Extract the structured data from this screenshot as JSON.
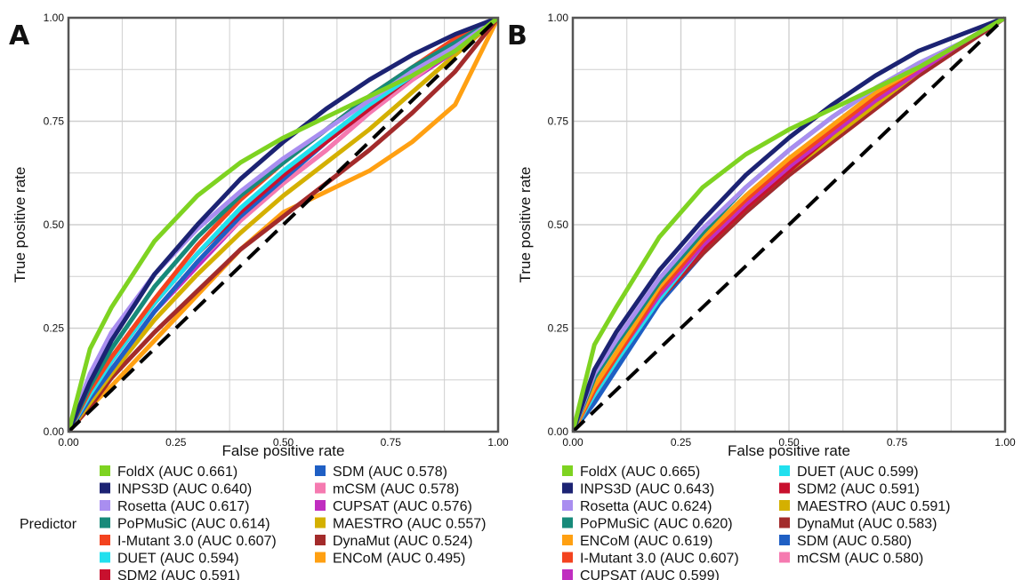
{
  "legend_title": "Predictor",
  "colors": {
    "FoldX": "#7ed321",
    "INPS3D": "#1c2373",
    "Rosetta": "#a98ef0",
    "PoPMuSiC": "#178a7a",
    "I-Mutant 3.0": "#f3431f",
    "DUET": "#21e0ee",
    "SDM2": "#c8102e",
    "SDM": "#1f5fc4",
    "mCSM": "#f57ab0",
    "CUPSAT": "#c02ec0",
    "MAESTRO": "#d4b000",
    "DynaMut": "#a32b2b",
    "ENCoM": "#ffa012"
  },
  "chart_data": [
    {
      "panel_label": "A",
      "type": "line",
      "xlabel": "False positive rate",
      "ylabel": "True positive rate",
      "xlim": [
        0,
        1
      ],
      "ylim": [
        0,
        1
      ],
      "xticks": [
        "0.00",
        "0.25",
        "0.50",
        "0.75",
        "1.00"
      ],
      "yticks": [
        "0.00",
        "0.25",
        "0.50",
        "0.75",
        "1.00"
      ],
      "grid": true,
      "diagonal": true,
      "x": [
        0,
        0.05,
        0.1,
        0.2,
        0.3,
        0.4,
        0.5,
        0.6,
        0.7,
        0.8,
        0.9,
        1.0
      ],
      "series": [
        {
          "name": "FoldX",
          "auc_label": "FoldX (AUC 0.661)",
          "values": [
            0,
            0.2,
            0.3,
            0.46,
            0.57,
            0.65,
            0.71,
            0.76,
            0.81,
            0.86,
            0.92,
            1.0
          ]
        },
        {
          "name": "INPS3D",
          "auc_label": "INPS3D (AUC 0.640)",
          "values": [
            0,
            0.12,
            0.22,
            0.38,
            0.5,
            0.61,
            0.7,
            0.78,
            0.85,
            0.91,
            0.96,
            1.0
          ]
        },
        {
          "name": "Rosetta",
          "auc_label": "Rosetta (AUC 0.617)",
          "values": [
            0,
            0.14,
            0.24,
            0.38,
            0.49,
            0.58,
            0.66,
            0.73,
            0.8,
            0.87,
            0.93,
            1.0
          ]
        },
        {
          "name": "PoPMuSiC",
          "auc_label": "PoPMuSiC (AUC 0.614)",
          "values": [
            0,
            0.11,
            0.2,
            0.35,
            0.47,
            0.57,
            0.65,
            0.73,
            0.81,
            0.88,
            0.94,
            1.0
          ]
        },
        {
          "name": "I-Mutant 3.0",
          "auc_label": "I-Mutant 3.0 (AUC 0.607)",
          "values": [
            0,
            0.1,
            0.18,
            0.32,
            0.45,
            0.56,
            0.65,
            0.73,
            0.81,
            0.88,
            0.95,
            1.0
          ]
        },
        {
          "name": "DUET",
          "auc_label": "DUET (AUC 0.594)",
          "values": [
            0,
            0.09,
            0.17,
            0.31,
            0.43,
            0.54,
            0.63,
            0.71,
            0.79,
            0.86,
            0.93,
            1.0
          ]
        },
        {
          "name": "SDM2",
          "auc_label": "SDM2 (AUC 0.591)",
          "values": [
            0,
            0.09,
            0.17,
            0.31,
            0.43,
            0.53,
            0.62,
            0.7,
            0.78,
            0.86,
            0.93,
            1.0
          ]
        },
        {
          "name": "SDM",
          "auc_label": "SDM (AUC 0.578)",
          "values": [
            0,
            0.08,
            0.15,
            0.29,
            0.41,
            0.52,
            0.61,
            0.7,
            0.78,
            0.86,
            0.93,
            1.0
          ]
        },
        {
          "name": "mCSM",
          "auc_label": "mCSM (AUC 0.578)",
          "values": [
            0,
            0.08,
            0.15,
            0.29,
            0.41,
            0.51,
            0.6,
            0.68,
            0.77,
            0.85,
            0.93,
            1.0
          ]
        },
        {
          "name": "CUPSAT",
          "auc_label": "CUPSAT (AUC 0.576)",
          "values": [
            0,
            0.08,
            0.15,
            0.29,
            0.4,
            0.51,
            0.6,
            0.68,
            0.77,
            0.85,
            0.92,
            1.0
          ]
        },
        {
          "name": "MAESTRO",
          "auc_label": "MAESTRO (AUC 0.557)",
          "values": [
            0,
            0.07,
            0.14,
            0.27,
            0.38,
            0.48,
            0.57,
            0.65,
            0.73,
            0.82,
            0.91,
            1.0
          ]
        },
        {
          "name": "DynaMut",
          "auc_label": "DynaMut (AUC 0.524)",
          "values": [
            0,
            0.06,
            0.13,
            0.24,
            0.34,
            0.44,
            0.52,
            0.6,
            0.68,
            0.77,
            0.87,
            1.0
          ]
        },
        {
          "name": "ENCoM",
          "auc_label": "ENCoM (AUC 0.495)",
          "values": [
            0,
            0.06,
            0.11,
            0.22,
            0.33,
            0.44,
            0.53,
            0.58,
            0.63,
            0.7,
            0.79,
            1.0
          ]
        }
      ]
    },
    {
      "panel_label": "B",
      "type": "line",
      "xlabel": "False positive rate",
      "ylabel": "True positive rate",
      "xlim": [
        0,
        1
      ],
      "ylim": [
        0,
        1
      ],
      "xticks": [
        "0.00",
        "0.25",
        "0.50",
        "0.75",
        "1.00"
      ],
      "yticks": [
        "0.00",
        "0.25",
        "0.50",
        "0.75",
        "1.00"
      ],
      "grid": true,
      "diagonal": true,
      "x": [
        0,
        0.05,
        0.1,
        0.2,
        0.3,
        0.4,
        0.5,
        0.6,
        0.7,
        0.8,
        0.9,
        1.0
      ],
      "series": [
        {
          "name": "FoldX",
          "auc_label": "FoldX (AUC 0.665)",
          "values": [
            0,
            0.21,
            0.3,
            0.47,
            0.59,
            0.67,
            0.73,
            0.78,
            0.83,
            0.88,
            0.94,
            1.0
          ]
        },
        {
          "name": "INPS3D",
          "auc_label": "INPS3D (AUC 0.643)",
          "values": [
            0,
            0.15,
            0.24,
            0.39,
            0.51,
            0.62,
            0.71,
            0.79,
            0.86,
            0.92,
            0.96,
            1.0
          ]
        },
        {
          "name": "Rosetta",
          "auc_label": "Rosetta (AUC 0.624)",
          "values": [
            0,
            0.14,
            0.22,
            0.37,
            0.49,
            0.59,
            0.68,
            0.76,
            0.83,
            0.89,
            0.94,
            1.0
          ]
        },
        {
          "name": "PoPMuSiC",
          "auc_label": "PoPMuSiC (AUC 0.620)",
          "values": [
            0,
            0.13,
            0.21,
            0.36,
            0.48,
            0.59,
            0.68,
            0.76,
            0.83,
            0.89,
            0.94,
            1.0
          ]
        },
        {
          "name": "ENCoM",
          "auc_label": "ENCoM (AUC 0.619)",
          "values": [
            0,
            0.11,
            0.19,
            0.35,
            0.47,
            0.57,
            0.66,
            0.74,
            0.82,
            0.88,
            0.94,
            1.0
          ]
        },
        {
          "name": "I-Mutant 3.0",
          "auc_label": "I-Mutant 3.0 (AUC 0.607)",
          "values": [
            0,
            0.1,
            0.18,
            0.34,
            0.46,
            0.56,
            0.65,
            0.73,
            0.81,
            0.88,
            0.94,
            1.0
          ]
        },
        {
          "name": "CUPSAT",
          "auc_label": "CUPSAT (AUC 0.599)",
          "values": [
            0,
            0.1,
            0.18,
            0.33,
            0.45,
            0.55,
            0.64,
            0.72,
            0.8,
            0.87,
            0.94,
            1.0
          ]
        },
        {
          "name": "DUET",
          "auc_label": "DUET (AUC 0.599)",
          "values": [
            0,
            0.09,
            0.17,
            0.32,
            0.45,
            0.55,
            0.64,
            0.73,
            0.81,
            0.88,
            0.94,
            1.0
          ]
        },
        {
          "name": "SDM2",
          "auc_label": "SDM2 (AUC 0.591)",
          "values": [
            0,
            0.1,
            0.18,
            0.32,
            0.44,
            0.54,
            0.63,
            0.72,
            0.8,
            0.87,
            0.94,
            1.0
          ]
        },
        {
          "name": "MAESTRO",
          "auc_label": "MAESTRO (AUC 0.591)",
          "values": [
            0,
            0.09,
            0.17,
            0.32,
            0.44,
            0.54,
            0.63,
            0.71,
            0.79,
            0.87,
            0.94,
            1.0
          ]
        },
        {
          "name": "DynaMut",
          "auc_label": "DynaMut (AUC 0.583)",
          "values": [
            0,
            0.1,
            0.18,
            0.32,
            0.43,
            0.53,
            0.62,
            0.7,
            0.78,
            0.86,
            0.93,
            1.0
          ]
        },
        {
          "name": "SDM",
          "auc_label": "SDM (AUC 0.580)",
          "values": [
            0,
            0.07,
            0.15,
            0.31,
            0.43,
            0.53,
            0.62,
            0.71,
            0.79,
            0.87,
            0.94,
            1.0
          ]
        },
        {
          "name": "mCSM",
          "auc_label": "mCSM (AUC 0.580)",
          "values": [
            0,
            0.09,
            0.17,
            0.31,
            0.43,
            0.53,
            0.62,
            0.7,
            0.78,
            0.86,
            0.93,
            1.0
          ]
        }
      ]
    }
  ]
}
